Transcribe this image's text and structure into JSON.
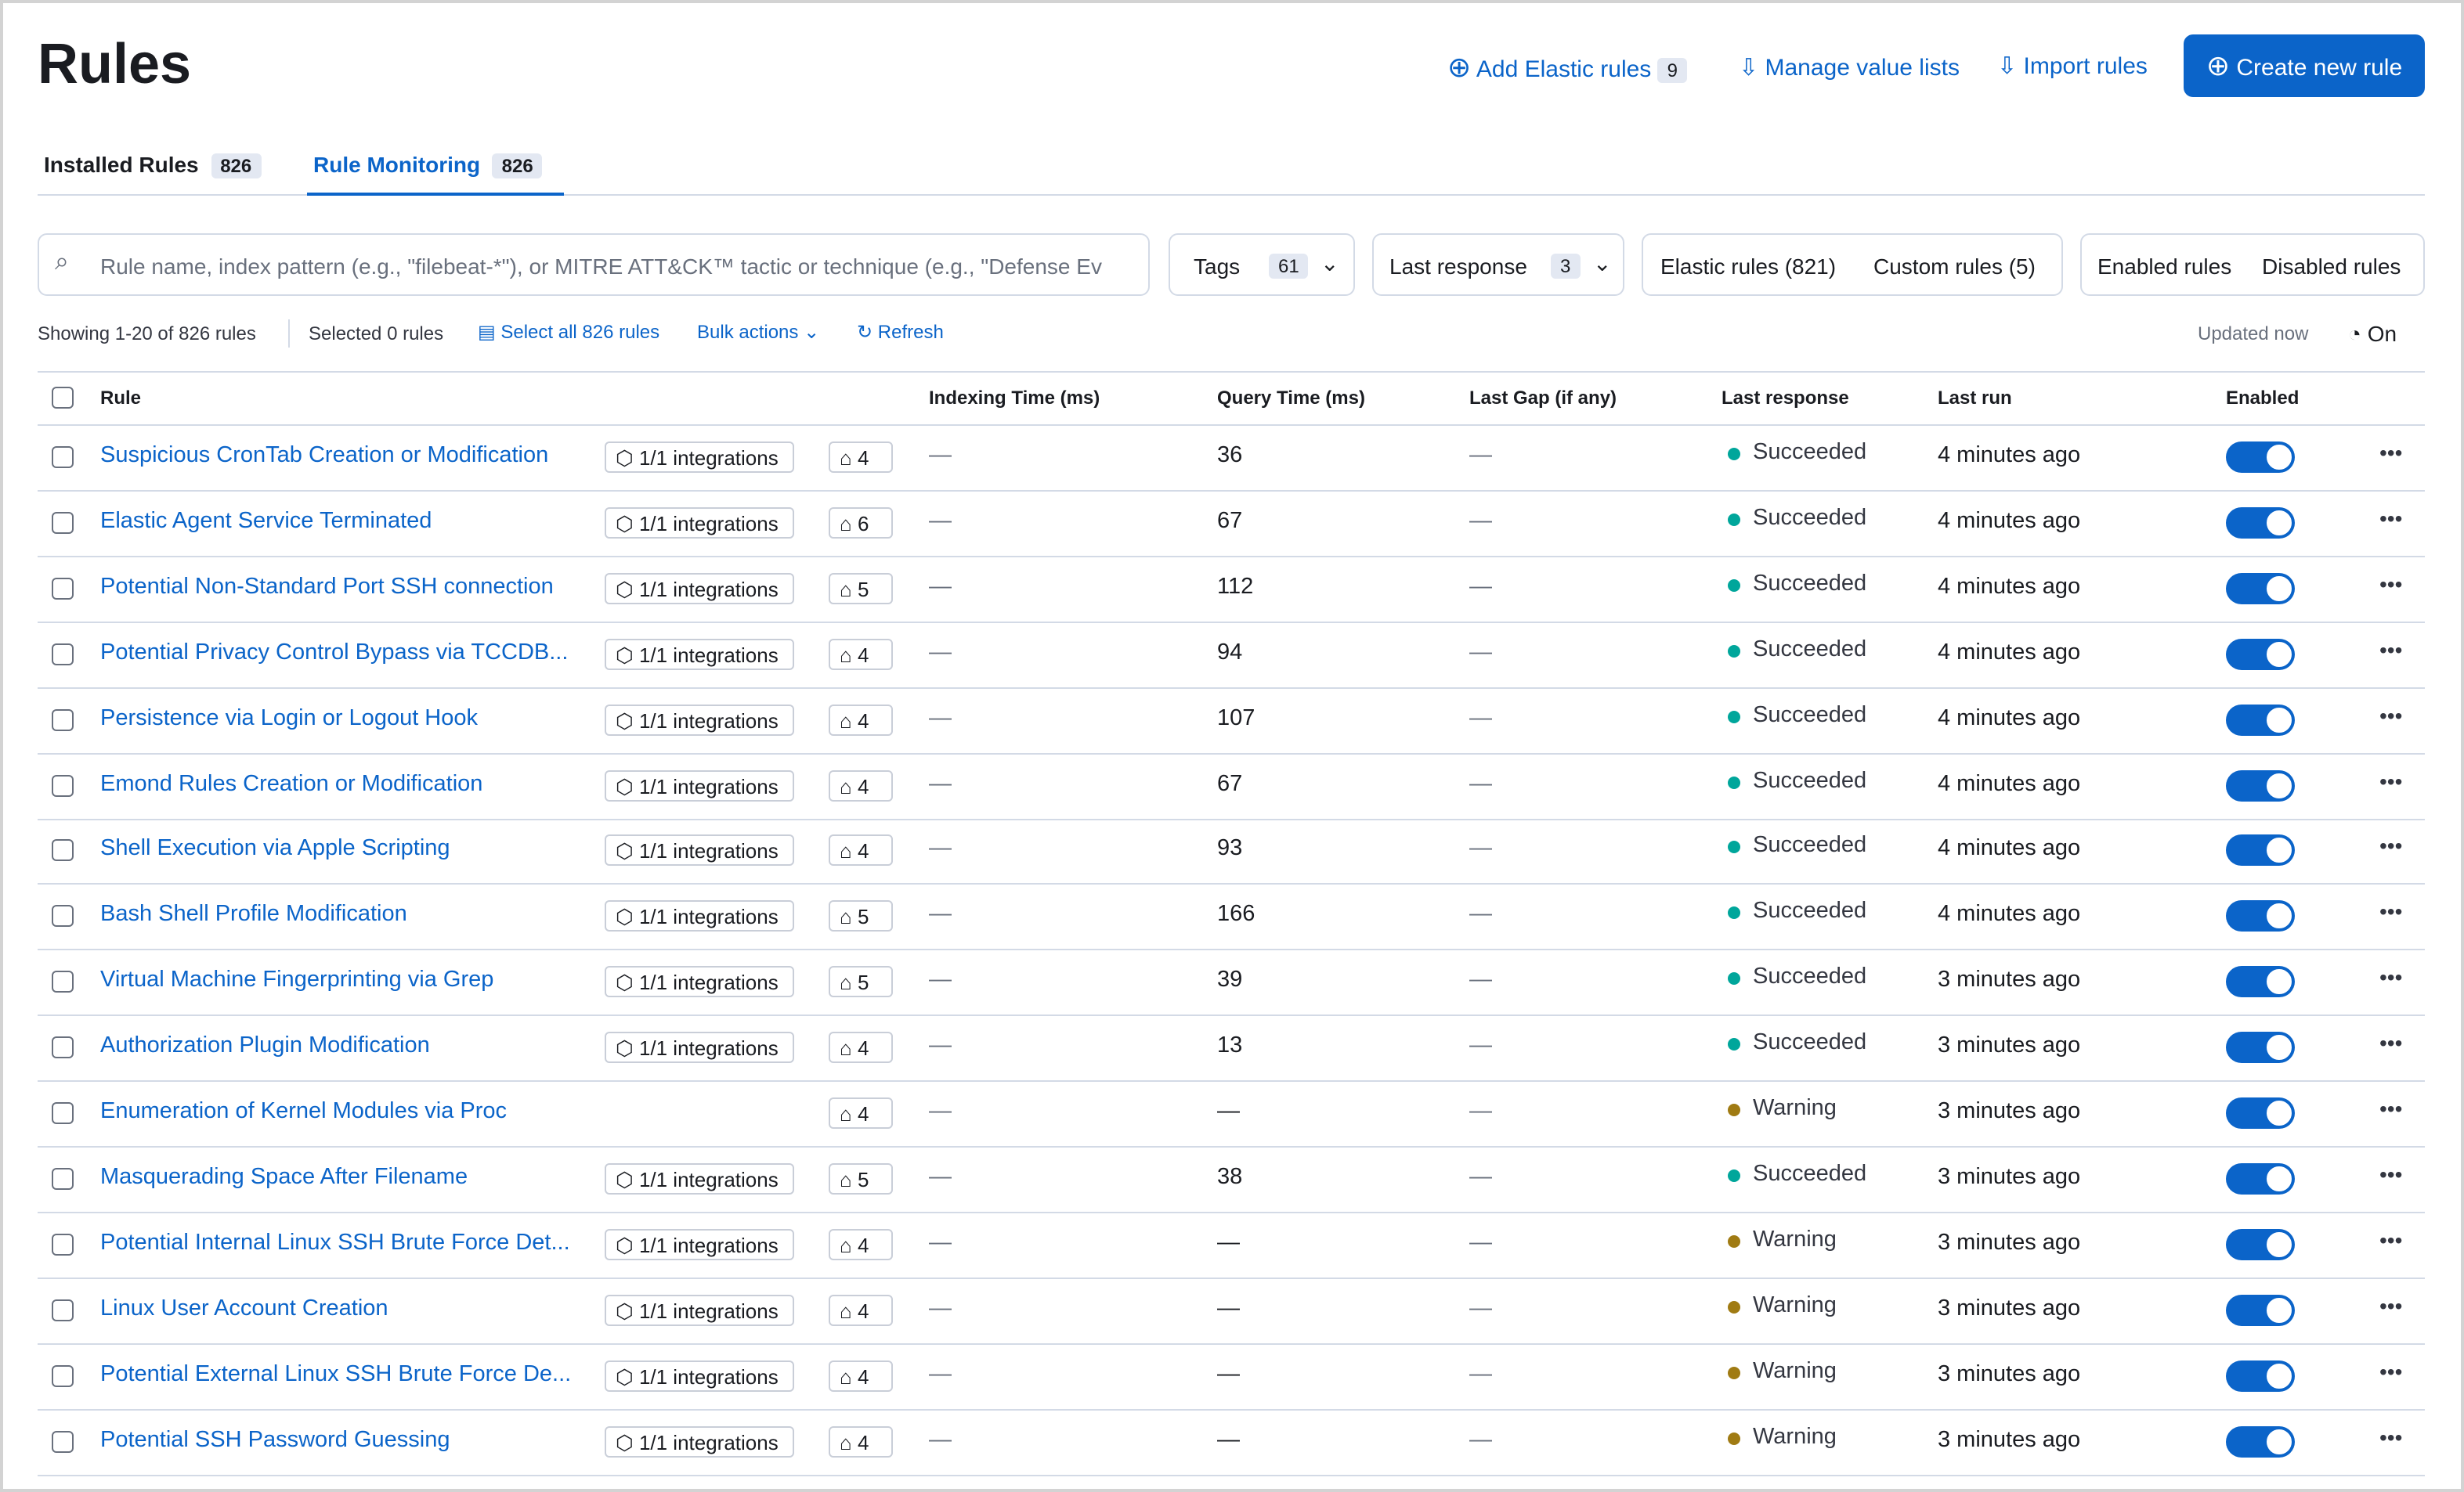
{
  "header": {
    "title": "Rules",
    "actions": {
      "add_elastic": "Add Elastic rules",
      "add_elastic_count": "9",
      "manage_lists": "Manage value lists",
      "import": "Import rules",
      "create": "Create new rule"
    }
  },
  "tabs": [
    {
      "label": "Installed Rules",
      "count": "826"
    },
    {
      "label": "Rule Monitoring",
      "count": "826"
    }
  ],
  "filters": {
    "search_placeholder": "Rule name, index pattern (e.g., \"filebeat-*\"), or MITRE ATT&CK™ tactic or technique (e.g., \"Defense Ev",
    "tags": "Tags",
    "tags_count": "61",
    "last_response": "Last response",
    "last_response_count": "3",
    "elastic_rules": "Elastic rules (821)",
    "custom_rules": "Custom rules (5)",
    "enabled_rules": "Enabled rules",
    "disabled_rules": "Disabled rules"
  },
  "toolbar": {
    "showing": "Showing 1-20 of 826 rules",
    "selected": "Selected 0 rules",
    "select_all": "Select all 826 rules",
    "bulk": "Bulk actions",
    "refresh": "Refresh",
    "updated": "Updated now",
    "auto_refresh": "On"
  },
  "table": {
    "columns": [
      "Rule",
      "Indexing Time (ms)",
      "Query Time (ms)",
      "Last Gap (if any)",
      "Last response",
      "Last run",
      "Enabled"
    ],
    "rows": [
      {
        "name": "Suspicious CronTab Creation or Modification",
        "integrations": "1/1 integrations",
        "tags": 4,
        "indexing": "—",
        "query": 36,
        "gap": "—",
        "response": "Succeeded",
        "run": "4 minutes ago"
      },
      {
        "name": "Elastic Agent Service Terminated",
        "integrations": "1/1 integrations",
        "tags": 6,
        "indexing": "—",
        "query": 67,
        "gap": "—",
        "response": "Succeeded",
        "run": "4 minutes ago"
      },
      {
        "name": "Potential Non-Standard Port SSH connection",
        "integrations": "1/1 integrations",
        "tags": 5,
        "indexing": "—",
        "query": 112,
        "gap": "—",
        "response": "Succeeded",
        "run": "4 minutes ago"
      },
      {
        "name": "Potential Privacy Control Bypass via TCCDB...",
        "integrations": "1/1 integrations",
        "tags": 4,
        "indexing": "—",
        "query": 94,
        "gap": "—",
        "response": "Succeeded",
        "run": "4 minutes ago"
      },
      {
        "name": "Persistence via Login or Logout Hook",
        "integrations": "1/1 integrations",
        "tags": 4,
        "indexing": "—",
        "query": 107,
        "gap": "—",
        "response": "Succeeded",
        "run": "4 minutes ago"
      },
      {
        "name": "Emond Rules Creation or Modification",
        "integrations": "1/1 integrations",
        "tags": 4,
        "indexing": "—",
        "query": 67,
        "gap": "—",
        "response": "Succeeded",
        "run": "4 minutes ago"
      },
      {
        "name": "Shell Execution via Apple Scripting",
        "integrations": "1/1 integrations",
        "tags": 4,
        "indexing": "—",
        "query": 93,
        "gap": "—",
        "response": "Succeeded",
        "run": "4 minutes ago"
      },
      {
        "name": "Bash Shell Profile Modification",
        "integrations": "1/1 integrations",
        "tags": 5,
        "indexing": "—",
        "query": 166,
        "gap": "—",
        "response": "Succeeded",
        "run": "4 minutes ago"
      },
      {
        "name": "Virtual Machine Fingerprinting via Grep",
        "integrations": "1/1 integrations",
        "tags": 5,
        "indexing": "—",
        "query": 39,
        "gap": "—",
        "response": "Succeeded",
        "run": "3 minutes ago"
      },
      {
        "name": "Authorization Plugin Modification",
        "integrations": "1/1 integrations",
        "tags": 4,
        "indexing": "—",
        "query": 13,
        "gap": "—",
        "response": "Succeeded",
        "run": "3 minutes ago"
      },
      {
        "name": "Enumeration of Kernel Modules via Proc",
        "tags": 4,
        "indexing": "—",
        "query": "—",
        "gap": "—",
        "response": "Warning",
        "run": "3 minutes ago"
      },
      {
        "name": "Masquerading Space After Filename",
        "integrations": "1/1 integrations",
        "tags": 5,
        "indexing": "—",
        "query": 38,
        "gap": "—",
        "response": "Succeeded",
        "run": "3 minutes ago"
      },
      {
        "name": "Potential Internal Linux SSH Brute Force Det...",
        "integrations": "1/1 integrations",
        "tags": 4,
        "indexing": "—",
        "query": "—",
        "gap": "—",
        "response": "Warning",
        "run": "3 minutes ago"
      },
      {
        "name": "Linux User Account Creation",
        "integrations": "1/1 integrations",
        "tags": 4,
        "indexing": "—",
        "query": "—",
        "gap": "—",
        "response": "Warning",
        "run": "3 minutes ago"
      },
      {
        "name": "Potential External Linux SSH Brute Force De...",
        "integrations": "1/1 integrations",
        "tags": 4,
        "indexing": "—",
        "query": "—",
        "gap": "—",
        "response": "Warning",
        "run": "3 minutes ago"
      },
      {
        "name": "Potential SSH Password Guessing",
        "integrations": "1/1 integrations",
        "tags": 4,
        "indexing": "—",
        "query": "—",
        "gap": "—",
        "response": "Warning",
        "run": "3 minutes ago"
      }
    ]
  }
}
